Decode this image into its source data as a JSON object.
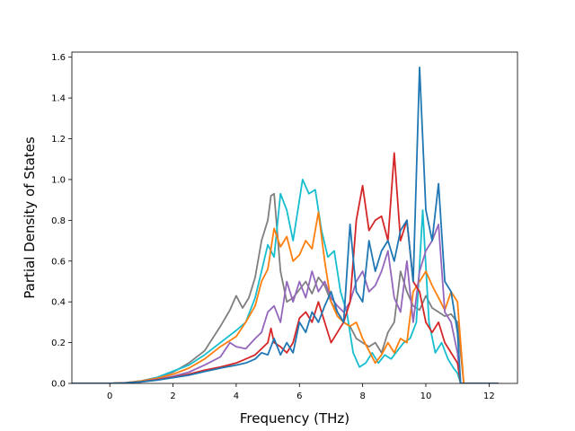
{
  "chart_data": {
    "type": "line",
    "title": "",
    "xlabel": "Frequency (THz)",
    "ylabel": "Partial Density of States",
    "xlim": [
      -1.2,
      12.9
    ],
    "ylim": [
      0.0,
      1.625
    ],
    "xticks": [
      0,
      2,
      4,
      6,
      8,
      10,
      12
    ],
    "xtick_labels": [
      "0",
      "2",
      "4",
      "6",
      "8",
      "10",
      "12"
    ],
    "yticks": [
      0.0,
      0.2,
      0.4,
      0.6,
      0.8,
      1.0,
      1.2,
      1.4,
      1.6
    ],
    "ytick_labels": [
      "0.0",
      "0.2",
      "0.4",
      "0.6",
      "0.8",
      "1.0",
      "1.2",
      "1.4",
      "1.6"
    ],
    "grid": false,
    "legend": "none",
    "series": [
      {
        "color": "#7f7f7f",
        "points": [
          [
            -1.2,
            0
          ],
          [
            0,
            0
          ],
          [
            0.5,
            0.003
          ],
          [
            1,
            0.012
          ],
          [
            1.5,
            0.03
          ],
          [
            2,
            0.055
          ],
          [
            2.5,
            0.1
          ],
          [
            3,
            0.16
          ],
          [
            3.5,
            0.28
          ],
          [
            3.8,
            0.36
          ],
          [
            4,
            0.43
          ],
          [
            4.2,
            0.37
          ],
          [
            4.4,
            0.42
          ],
          [
            4.6,
            0.52
          ],
          [
            4.8,
            0.7
          ],
          [
            5,
            0.8
          ],
          [
            5.1,
            0.92
          ],
          [
            5.2,
            0.93
          ],
          [
            5.4,
            0.55
          ],
          [
            5.6,
            0.4
          ],
          [
            5.8,
            0.42
          ],
          [
            6,
            0.46
          ],
          [
            6.2,
            0.5
          ],
          [
            6.4,
            0.44
          ],
          [
            6.6,
            0.52
          ],
          [
            6.8,
            0.48
          ],
          [
            7,
            0.4
          ],
          [
            7.2,
            0.35
          ],
          [
            7.4,
            0.3
          ],
          [
            7.6,
            0.28
          ],
          [
            7.8,
            0.22
          ],
          [
            8,
            0.2
          ],
          [
            8.2,
            0.18
          ],
          [
            8.4,
            0.2
          ],
          [
            8.6,
            0.15
          ],
          [
            8.8,
            0.25
          ],
          [
            9,
            0.3
          ],
          [
            9.2,
            0.55
          ],
          [
            9.4,
            0.45
          ],
          [
            9.6,
            0.38
          ],
          [
            9.8,
            0.36
          ],
          [
            10,
            0.43
          ],
          [
            10.2,
            0.37
          ],
          [
            10.4,
            0.35
          ],
          [
            10.6,
            0.33
          ],
          [
            10.8,
            0.34
          ],
          [
            11,
            0.3
          ],
          [
            11.1,
            0.15
          ],
          [
            11.2,
            0
          ],
          [
            12.3,
            0
          ]
        ]
      },
      {
        "color": "#17becf",
        "points": [
          [
            -1.2,
            0
          ],
          [
            0,
            0
          ],
          [
            0.5,
            0.003
          ],
          [
            1,
            0.012
          ],
          [
            1.5,
            0.03
          ],
          [
            2,
            0.06
          ],
          [
            2.5,
            0.09
          ],
          [
            3,
            0.14
          ],
          [
            3.5,
            0.2
          ],
          [
            4,
            0.26
          ],
          [
            4.3,
            0.3
          ],
          [
            4.6,
            0.42
          ],
          [
            4.8,
            0.55
          ],
          [
            5,
            0.68
          ],
          [
            5.2,
            0.62
          ],
          [
            5.4,
            0.93
          ],
          [
            5.6,
            0.85
          ],
          [
            5.8,
            0.7
          ],
          [
            6,
            0.9
          ],
          [
            6.1,
            1.0
          ],
          [
            6.3,
            0.93
          ],
          [
            6.5,
            0.95
          ],
          [
            6.7,
            0.75
          ],
          [
            6.9,
            0.62
          ],
          [
            7.1,
            0.65
          ],
          [
            7.3,
            0.45
          ],
          [
            7.5,
            0.35
          ],
          [
            7.7,
            0.15
          ],
          [
            7.9,
            0.08
          ],
          [
            8.1,
            0.1
          ],
          [
            8.3,
            0.15
          ],
          [
            8.5,
            0.1
          ],
          [
            8.7,
            0.14
          ],
          [
            8.9,
            0.12
          ],
          [
            9.1,
            0.16
          ],
          [
            9.3,
            0.2
          ],
          [
            9.5,
            0.22
          ],
          [
            9.7,
            0.3
          ],
          [
            9.9,
            0.85
          ],
          [
            10.1,
            0.3
          ],
          [
            10.3,
            0.15
          ],
          [
            10.5,
            0.2
          ],
          [
            10.7,
            0.12
          ],
          [
            10.9,
            0.07
          ],
          [
            11,
            0.05
          ],
          [
            11.1,
            0
          ],
          [
            12.3,
            0
          ]
        ]
      },
      {
        "color": "#ff7f0e",
        "points": [
          [
            -1.2,
            0
          ],
          [
            0,
            0
          ],
          [
            0.5,
            0.003
          ],
          [
            1,
            0.012
          ],
          [
            1.5,
            0.025
          ],
          [
            2,
            0.045
          ],
          [
            2.5,
            0.075
          ],
          [
            3,
            0.12
          ],
          [
            3.5,
            0.18
          ],
          [
            4,
            0.23
          ],
          [
            4.3,
            0.3
          ],
          [
            4.6,
            0.38
          ],
          [
            4.8,
            0.5
          ],
          [
            5,
            0.56
          ],
          [
            5.2,
            0.76
          ],
          [
            5.4,
            0.67
          ],
          [
            5.6,
            0.72
          ],
          [
            5.8,
            0.6
          ],
          [
            6,
            0.63
          ],
          [
            6.2,
            0.7
          ],
          [
            6.4,
            0.66
          ],
          [
            6.6,
            0.84
          ],
          [
            6.8,
            0.6
          ],
          [
            7,
            0.4
          ],
          [
            7.2,
            0.33
          ],
          [
            7.4,
            0.3
          ],
          [
            7.6,
            0.28
          ],
          [
            7.8,
            0.3
          ],
          [
            8,
            0.22
          ],
          [
            8.2,
            0.16
          ],
          [
            8.4,
            0.1
          ],
          [
            8.6,
            0.14
          ],
          [
            8.8,
            0.2
          ],
          [
            9,
            0.15
          ],
          [
            9.2,
            0.22
          ],
          [
            9.4,
            0.2
          ],
          [
            9.6,
            0.45
          ],
          [
            9.8,
            0.5
          ],
          [
            10,
            0.55
          ],
          [
            10.2,
            0.48
          ],
          [
            10.4,
            0.42
          ],
          [
            10.6,
            0.36
          ],
          [
            10.8,
            0.45
          ],
          [
            11,
            0.4
          ],
          [
            11.1,
            0.2
          ],
          [
            11.2,
            0
          ],
          [
            12.3,
            0
          ]
        ]
      },
      {
        "color": "#9467bd",
        "points": [
          [
            -1.2,
            0
          ],
          [
            0,
            0
          ],
          [
            0.5,
            0.002
          ],
          [
            1,
            0.008
          ],
          [
            1.5,
            0.02
          ],
          [
            2,
            0.035
          ],
          [
            2.5,
            0.055
          ],
          [
            3,
            0.09
          ],
          [
            3.5,
            0.13
          ],
          [
            3.8,
            0.2
          ],
          [
            4,
            0.18
          ],
          [
            4.3,
            0.17
          ],
          [
            4.6,
            0.22
          ],
          [
            4.8,
            0.25
          ],
          [
            5,
            0.35
          ],
          [
            5.2,
            0.38
          ],
          [
            5.4,
            0.3
          ],
          [
            5.6,
            0.5
          ],
          [
            5.8,
            0.4
          ],
          [
            6,
            0.5
          ],
          [
            6.2,
            0.42
          ],
          [
            6.4,
            0.55
          ],
          [
            6.6,
            0.45
          ],
          [
            6.8,
            0.5
          ],
          [
            7,
            0.42
          ],
          [
            7.2,
            0.38
          ],
          [
            7.4,
            0.35
          ],
          [
            7.6,
            0.4
          ],
          [
            7.8,
            0.5
          ],
          [
            8,
            0.55
          ],
          [
            8.2,
            0.45
          ],
          [
            8.4,
            0.48
          ],
          [
            8.6,
            0.55
          ],
          [
            8.8,
            0.65
          ],
          [
            9,
            0.42
          ],
          [
            9.2,
            0.35
          ],
          [
            9.4,
            0.6
          ],
          [
            9.6,
            0.3
          ],
          [
            9.8,
            0.55
          ],
          [
            10,
            0.65
          ],
          [
            10.2,
            0.7
          ],
          [
            10.4,
            0.78
          ],
          [
            10.6,
            0.35
          ],
          [
            10.8,
            0.3
          ],
          [
            11,
            0.15
          ],
          [
            11.1,
            0
          ],
          [
            12.3,
            0
          ]
        ]
      },
      {
        "color": "#d62728",
        "points": [
          [
            -1.2,
            0
          ],
          [
            0,
            0
          ],
          [
            0.5,
            0.002
          ],
          [
            1,
            0.008
          ],
          [
            1.5,
            0.018
          ],
          [
            2,
            0.03
          ],
          [
            2.5,
            0.045
          ],
          [
            3,
            0.065
          ],
          [
            3.5,
            0.08
          ],
          [
            4,
            0.1
          ],
          [
            4.3,
            0.12
          ],
          [
            4.6,
            0.14
          ],
          [
            4.8,
            0.17
          ],
          [
            5,
            0.2
          ],
          [
            5.1,
            0.27
          ],
          [
            5.2,
            0.2
          ],
          [
            5.4,
            0.18
          ],
          [
            5.6,
            0.15
          ],
          [
            5.8,
            0.2
          ],
          [
            6,
            0.32
          ],
          [
            6.2,
            0.35
          ],
          [
            6.4,
            0.3
          ],
          [
            6.6,
            0.4
          ],
          [
            6.8,
            0.3
          ],
          [
            7,
            0.2
          ],
          [
            7.2,
            0.25
          ],
          [
            7.4,
            0.3
          ],
          [
            7.6,
            0.4
          ],
          [
            7.8,
            0.8
          ],
          [
            8,
            0.97
          ],
          [
            8.2,
            0.75
          ],
          [
            8.4,
            0.8
          ],
          [
            8.6,
            0.82
          ],
          [
            8.8,
            0.7
          ],
          [
            9,
            1.13
          ],
          [
            9.2,
            0.7
          ],
          [
            9.4,
            0.8
          ],
          [
            9.6,
            0.5
          ],
          [
            9.8,
            0.45
          ],
          [
            10,
            0.3
          ],
          [
            10.2,
            0.25
          ],
          [
            10.4,
            0.3
          ],
          [
            10.6,
            0.2
          ],
          [
            10.8,
            0.15
          ],
          [
            11,
            0.1
          ],
          [
            11.1,
            0
          ],
          [
            12.3,
            0
          ]
        ]
      },
      {
        "color": "#1f77b4",
        "points": [
          [
            -1.2,
            0
          ],
          [
            0,
            0
          ],
          [
            0.5,
            0.002
          ],
          [
            1,
            0.008
          ],
          [
            1.5,
            0.016
          ],
          [
            2,
            0.028
          ],
          [
            2.5,
            0.04
          ],
          [
            3,
            0.058
          ],
          [
            3.5,
            0.075
          ],
          [
            4,
            0.09
          ],
          [
            4.3,
            0.1
          ],
          [
            4.6,
            0.12
          ],
          [
            4.8,
            0.15
          ],
          [
            5,
            0.14
          ],
          [
            5.2,
            0.22
          ],
          [
            5.4,
            0.14
          ],
          [
            5.6,
            0.2
          ],
          [
            5.8,
            0.15
          ],
          [
            6,
            0.3
          ],
          [
            6.2,
            0.25
          ],
          [
            6.4,
            0.35
          ],
          [
            6.6,
            0.3
          ],
          [
            6.8,
            0.38
          ],
          [
            7,
            0.45
          ],
          [
            7.2,
            0.35
          ],
          [
            7.4,
            0.3
          ],
          [
            7.6,
            0.78
          ],
          [
            7.8,
            0.45
          ],
          [
            8,
            0.4
          ],
          [
            8.2,
            0.7
          ],
          [
            8.4,
            0.55
          ],
          [
            8.6,
            0.65
          ],
          [
            8.8,
            0.7
          ],
          [
            9,
            0.6
          ],
          [
            9.2,
            0.75
          ],
          [
            9.4,
            0.8
          ],
          [
            9.6,
            0.5
          ],
          [
            9.8,
            1.55
          ],
          [
            10,
            0.85
          ],
          [
            10.2,
            0.7
          ],
          [
            10.4,
            0.98
          ],
          [
            10.6,
            0.5
          ],
          [
            10.8,
            0.45
          ],
          [
            11,
            0.25
          ],
          [
            11.1,
            0
          ],
          [
            12.3,
            0
          ]
        ]
      }
    ]
  }
}
